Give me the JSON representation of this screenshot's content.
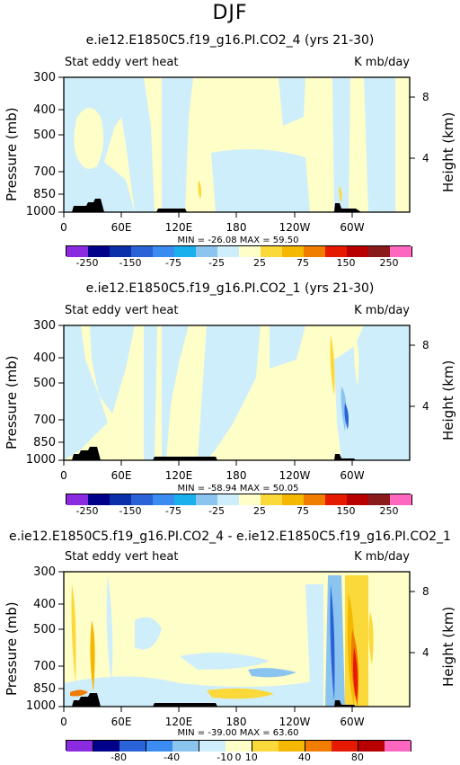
{
  "season": "DJF",
  "panels": [
    {
      "title": "e.ie12.E1850C5.f19_g16.PI.CO2_4 (yrs 21-30)",
      "left": "Stat eddy vert heat",
      "right": "K mb/day",
      "minmax": "MIN = -26.08   MAX =  59.50",
      "colorbar_labels": [
        "-250",
        "-150",
        "-75",
        "-25",
        "25",
        "75",
        "150",
        "250"
      ]
    },
    {
      "title": "e.ie12.E1850C5.f19_g16.PI.CO2_1 (yrs 21-30)",
      "left": "Stat eddy vert heat",
      "right": "K mb/day",
      "minmax": "MIN = -58.94   MAX =  50.05",
      "colorbar_labels": [
        "-250",
        "-150",
        "-75",
        "-25",
        "25",
        "75",
        "150",
        "250"
      ]
    },
    {
      "title": "e.ie12.E1850C5.f19_g16.PI.CO2_4 - e.ie12.E1850C5.f19_g16.PI.CO2_1",
      "left": "Stat eddy vert heat",
      "right": "K mb/day",
      "minmax": "MIN = -39.00   MAX =  63.60",
      "colorbar_labels": [
        "-80",
        "-40",
        "-10",
        "0",
        "10",
        "40",
        "80"
      ]
    }
  ],
  "axes": {
    "ylabel": "Pressure (mb)",
    "y2label": "Height (km)",
    "yticks": [
      "300",
      "400",
      "500",
      "700",
      "850",
      "1000"
    ],
    "y2ticks": [
      "8",
      "4"
    ],
    "xticks": [
      "0",
      "60E",
      "120E",
      "180",
      "120W",
      "60W"
    ]
  },
  "colors": {
    "cb13": [
      "#8a2be2",
      "#00008b",
      "#0a2fa8",
      "#2a62d8",
      "#3a8cf0",
      "#19b0ee",
      "#8cc4f0",
      "#cfeefb",
      "#fefec8",
      "#fcd93a",
      "#f5b800",
      "#f07c00",
      "#e61a00",
      "#b80000",
      "#8b1a1a",
      "#ff66c0"
    ],
    "cb_diff": [
      "#8a2be2",
      "#00008b",
      "#2a62d8",
      "#3a8cf0",
      "#8cc4f0",
      "#cfeefb",
      "#fefec8",
      "#fcd93a",
      "#f5b800",
      "#f07c00",
      "#e61a00",
      "#b80000",
      "#ff66c0"
    ]
  },
  "chart_data": [
    {
      "type": "heatmap",
      "title": "e.ie12.E1850C5.f19_g16.PI.CO2_4 (yrs 21-30)",
      "xlabel": "",
      "ylabel": "Pressure (mb)",
      "y2label": "Height (km)",
      "min": -26.08,
      "max": 59.5,
      "units": "K mb/day"
    },
    {
      "type": "heatmap",
      "title": "e.ie12.E1850C5.f19_g16.PI.CO2_1 (yrs 21-30)",
      "xlabel": "",
      "ylabel": "Pressure (mb)",
      "y2label": "Height (km)",
      "min": -58.94,
      "max": 50.05,
      "units": "K mb/day"
    },
    {
      "type": "heatmap",
      "title": "e.ie12.E1850C5.f19_g16.PI.CO2_4 - e.ie12.E1850C5.f19_g16.PI.CO2_1",
      "xlabel": "",
      "ylabel": "Pressure (mb)",
      "y2label": "Height (km)",
      "min": -39.0,
      "max": 63.6,
      "units": "K mb/day"
    }
  ]
}
